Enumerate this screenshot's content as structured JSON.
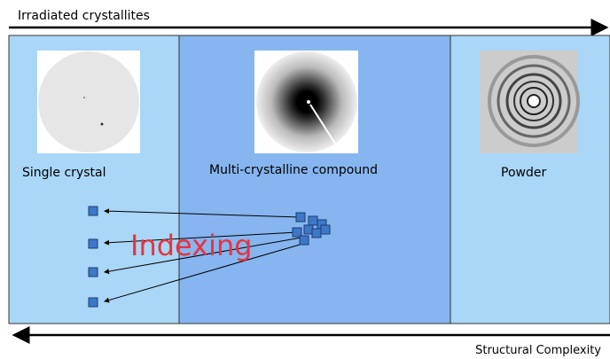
{
  "top_arrow_label": "Irradiated crystallites",
  "panels": [
    {
      "label": "Single crystal"
    },
    {
      "label": "Multi-crystalline compound"
    },
    {
      "label": "Powder"
    }
  ],
  "annotation": "Indexing",
  "bottom_arrow_label": "Structural Complexity"
}
